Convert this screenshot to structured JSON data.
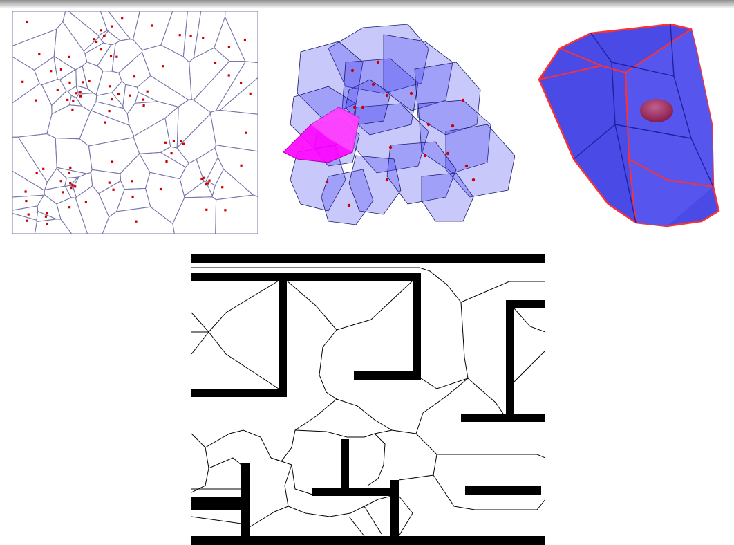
{
  "figure": {
    "panels": [
      {
        "kind": "2d-voronoi-tessellation",
        "site_color": "#cc0000",
        "edge_color": "#7777aa"
      },
      {
        "kind": "3d-voronoi-cells",
        "cell_color": "#3b3bf0",
        "highlight_color": "#ff00ff"
      },
      {
        "kind": "single-3d-voronoi-cell",
        "face_color": "#4a4ae6",
        "edge_color": "#ff3030",
        "site_color": "#b03060"
      },
      {
        "kind": "generalized-voronoi-diagram-maze",
        "wall_color": "#000000",
        "edge_color": "#000000"
      }
    ]
  }
}
